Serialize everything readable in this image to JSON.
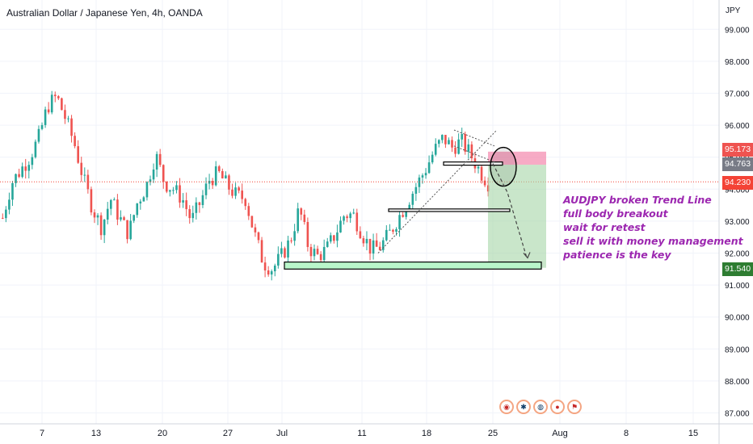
{
  "header": {
    "title": "Australian Dollar / Japanese Yen, 4h, OANDA",
    "currency": "JPY"
  },
  "colors": {
    "up": "#26a69a",
    "down": "#ef5350",
    "annotation": "#9c27b0",
    "stop_zone": "#f48fb1",
    "target_zone": "#a5d6a7",
    "current_price": "#f44336",
    "target_badge": "#2e7d32",
    "entry_badge": "#787b86"
  },
  "annotation": {
    "lines": [
      "AUDJPY broken Trend Line",
      "full body breakout",
      "wait for retest",
      "sell it with money management",
      "patience is the key"
    ]
  },
  "price_badges": {
    "stop": "95.173",
    "entry": "94.763",
    "current": "94.230",
    "target": "91.540"
  },
  "bottom_icons": [
    "signal-icon",
    "target-icon",
    "globe-icon",
    "globe-icon",
    "flag-icon"
  ],
  "chart_data": {
    "type": "candlestick",
    "title": "Australian Dollar / Japanese Yen, 4h, OANDA",
    "y_axis_label": "JPY",
    "ylim": [
      86.9,
      99.3
    ],
    "y_ticks": [
      "87.000",
      "88.000",
      "89.000",
      "90.000",
      "91.000",
      "92.000",
      "93.000",
      "94.000",
      "95.000",
      "96.000",
      "97.000",
      "98.000",
      "99.000"
    ],
    "x_ticks": [
      "7",
      "13",
      "20",
      "27",
      "Jul",
      "11",
      "18",
      "25",
      "Aug",
      "8",
      "15"
    ],
    "grid": true,
    "series": [
      {
        "anchor_prices": [
          93.1,
          94.2,
          94.6,
          95.0,
          95.6,
          96.6,
          96.9,
          96.2,
          95.4,
          94.3,
          93.4,
          92.8,
          93.7,
          93.1,
          92.6,
          93.6,
          94.1,
          95.1,
          94.2,
          94.0,
          93.7,
          93.0,
          93.6,
          94.3,
          94.5,
          94.1,
          93.8,
          93.7,
          92.6,
          91.7,
          91.5,
          91.9,
          92.4,
          93.4,
          92.2,
          91.9,
          92.1,
          92.6,
          93.2,
          93.2,
          92.6,
          92.1,
          92.2,
          92.6,
          93.1,
          93.6,
          94.1,
          94.6,
          95.2,
          95.6,
          95.3,
          95.5,
          95.1,
          94.6,
          94.2
        ]
      }
    ],
    "trade_setup": {
      "stop_loss": 95.173,
      "entry": 94.763,
      "current_price": 94.23,
      "target": 91.54
    }
  }
}
